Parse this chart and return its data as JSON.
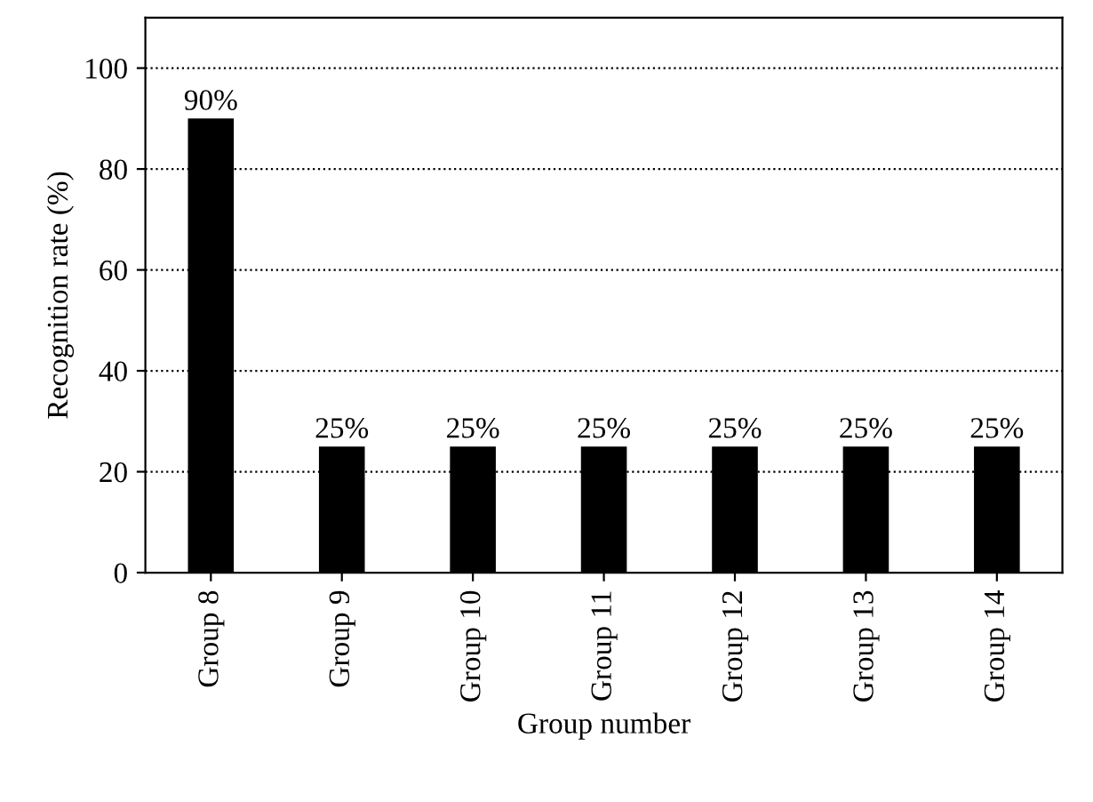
{
  "chart_data": {
    "type": "bar",
    "xlabel": "Group number",
    "ylabel": "Recognition rate (%)",
    "categories": [
      "Group 8",
      "Group 9",
      "Group 10",
      "Group 11",
      "Group 12",
      "Group 13",
      "Group 14"
    ],
    "values": [
      90,
      25,
      25,
      25,
      25,
      25,
      25
    ],
    "value_labels": [
      "90%",
      "25%",
      "25%",
      "25%",
      "25%",
      "25%",
      "25%"
    ],
    "color": "#000000",
    "ylim": [
      0,
      110
    ],
    "yticks": [
      0,
      20,
      40,
      60,
      80,
      100
    ],
    "grid": "y",
    "line_style": "dotted"
  }
}
